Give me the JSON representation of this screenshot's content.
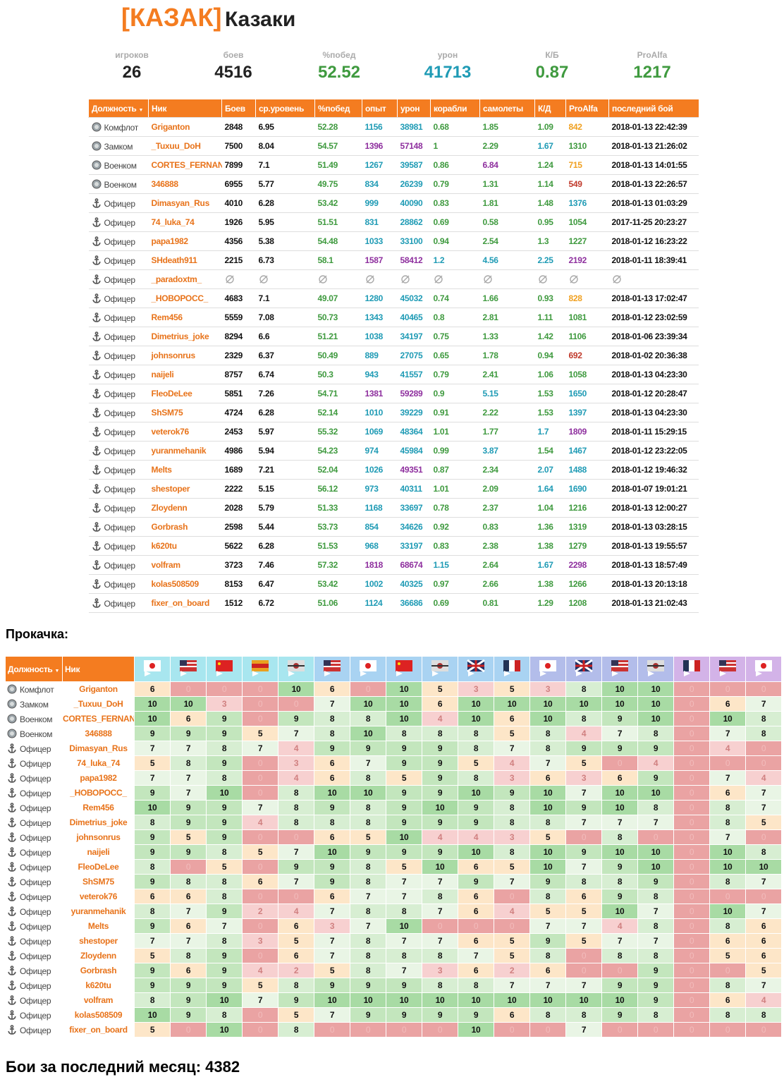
{
  "header": {
    "tag": "[КАЗАК]",
    "name": "Казаки"
  },
  "stats": [
    {
      "label": "игроков",
      "value": "26",
      "color": "#222222"
    },
    {
      "label": "боев",
      "value": "4516",
      "color": "#222222"
    },
    {
      "label": "%побед",
      "value": "52.52",
      "color": "#3f9a3f"
    },
    {
      "label": "урон",
      "value": "41713",
      "color": "#1f9bb5"
    },
    {
      "label": "К/Б",
      "value": "0.87",
      "color": "#3f9a3f"
    },
    {
      "label": "ProAlfa",
      "value": "1217",
      "color": "#3f9a3f"
    }
  ],
  "members": {
    "columns": [
      "Должность",
      "Ник",
      "Боев",
      "ср.уровень",
      "%побед",
      "опыт",
      "урон",
      "корабли",
      "самолеты",
      "К/Д",
      "ProAlfa",
      "последний бой"
    ],
    "rows": [
      [
        "Комфлот",
        "Griganton",
        "2848",
        "6.95",
        "52.28",
        "1156",
        "38981",
        "0.68",
        "1.85",
        "1.09",
        "842",
        "2018-01-13 22:42:39"
      ],
      [
        "Замком",
        "_Tuxuu_DoH",
        "7500",
        "8.04",
        "54.57",
        "1396",
        "57148",
        "1",
        "2.29",
        "1.67",
        "1310",
        "2018-01-13 21:26:02"
      ],
      [
        "Военком",
        "CORTES_FERNAN",
        "7899",
        "7.1",
        "51.49",
        "1267",
        "39587",
        "0.86",
        "6.84",
        "1.24",
        "715",
        "2018-01-13 14:01:55"
      ],
      [
        "Военком",
        "346888",
        "6955",
        "5.77",
        "49.75",
        "834",
        "26239",
        "0.79",
        "1.31",
        "1.14",
        "549",
        "2018-01-13 22:26:57"
      ],
      [
        "Офицер",
        "Dimasyan_Rus",
        "4010",
        "6.28",
        "53.42",
        "999",
        "40090",
        "0.83",
        "1.81",
        "1.48",
        "1376",
        "2018-01-13 01:03:29"
      ],
      [
        "Офицер",
        "74_luka_74",
        "1926",
        "5.95",
        "51.51",
        "831",
        "28862",
        "0.69",
        "0.58",
        "0.95",
        "1054",
        "2017-11-25 20:23:27"
      ],
      [
        "Офицер",
        "papa1982",
        "4356",
        "5.38",
        "54.48",
        "1033",
        "33100",
        "0.94",
        "2.54",
        "1.3",
        "1227",
        "2018-01-12 16:23:22"
      ],
      [
        "Офицер",
        "SHdeath911",
        "2215",
        "6.73",
        "58.1",
        "1587",
        "58412",
        "1.2",
        "4.56",
        "2.25",
        "2192",
        "2018-01-11 18:39:41"
      ],
      [
        "Офицер",
        "_paradoxtm_",
        null,
        null,
        null,
        null,
        null,
        null,
        null,
        null,
        null,
        null
      ],
      [
        "Офицер",
        "_НОВОРОСС_",
        "4683",
        "7.1",
        "49.07",
        "1280",
        "45032",
        "0.74",
        "1.66",
        "0.93",
        "828",
        "2018-01-13 17:02:47"
      ],
      [
        "Офицер",
        "Rem456",
        "5559",
        "7.08",
        "50.73",
        "1343",
        "40465",
        "0.8",
        "2.81",
        "1.11",
        "1081",
        "2018-01-12 23:02:59"
      ],
      [
        "Офицер",
        "Dimetrius_joke",
        "8294",
        "6.6",
        "51.21",
        "1038",
        "34197",
        "0.75",
        "1.33",
        "1.42",
        "1106",
        "2018-01-06 23:39:34"
      ],
      [
        "Офицер",
        "johnsonrus",
        "2329",
        "6.37",
        "50.49",
        "889",
        "27075",
        "0.65",
        "1.78",
        "0.94",
        "692",
        "2018-01-02 20:36:38"
      ],
      [
        "Офицер",
        "naijeli",
        "8757",
        "6.74",
        "50.3",
        "943",
        "41557",
        "0.79",
        "2.41",
        "1.06",
        "1058",
        "2018-01-13 04:23:30"
      ],
      [
        "Офицер",
        "FleoDeLee",
        "5851",
        "7.26",
        "54.71",
        "1381",
        "59289",
        "0.9",
        "5.15",
        "1.53",
        "1650",
        "2018-01-12 20:28:47"
      ],
      [
        "Офицер",
        "ShSM75",
        "4724",
        "6.28",
        "52.14",
        "1010",
        "39229",
        "0.91",
        "2.22",
        "1.53",
        "1397",
        "2018-01-13 04:23:30"
      ],
      [
        "Офицер",
        "veterok76",
        "2453",
        "5.97",
        "55.32",
        "1069",
        "48364",
        "1.01",
        "1.77",
        "1.7",
        "1809",
        "2018-01-11 15:29:15"
      ],
      [
        "Офицер",
        "yuranmehanik",
        "4986",
        "5.94",
        "54.23",
        "974",
        "45984",
        "0.99",
        "3.87",
        "1.54",
        "1467",
        "2018-01-12 23:22:05"
      ],
      [
        "Офицер",
        "Melts",
        "1689",
        "7.21",
        "52.04",
        "1026",
        "49351",
        "0.87",
        "2.34",
        "2.07",
        "1488",
        "2018-01-12 19:46:32"
      ],
      [
        "Офицер",
        "shestoper",
        "2222",
        "5.15",
        "56.12",
        "973",
        "40311",
        "1.01",
        "2.09",
        "1.64",
        "1690",
        "2018-01-07 19:01:21"
      ],
      [
        "Офицер",
        "Zloydenn",
        "2028",
        "5.79",
        "51.33",
        "1168",
        "33697",
        "0.78",
        "2.37",
        "1.04",
        "1216",
        "2018-01-13 12:00:27"
      ],
      [
        "Офицер",
        "Gorbrash",
        "2598",
        "5.44",
        "53.73",
        "854",
        "34626",
        "0.92",
        "0.83",
        "1.36",
        "1319",
        "2018-01-13 03:28:15"
      ],
      [
        "Офицер",
        "k620tu",
        "5622",
        "6.28",
        "51.53",
        "968",
        "33197",
        "0.83",
        "2.38",
        "1.38",
        "1279",
        "2018-01-13 19:55:57"
      ],
      [
        "Офицер",
        "volfram",
        "3723",
        "7.46",
        "57.32",
        "1818",
        "68674",
        "1.15",
        "2.64",
        "1.67",
        "2298",
        "2018-01-13 18:57:49"
      ],
      [
        "Офицер",
        "kolas508509",
        "8153",
        "6.47",
        "53.42",
        "1002",
        "40325",
        "0.97",
        "2.66",
        "1.38",
        "1266",
        "2018-01-13 20:13:18"
      ],
      [
        "Офицер",
        "fixer_on_board",
        "1512",
        "6.72",
        "51.06",
        "1124",
        "36686",
        "0.69",
        "0.81",
        "1.29",
        "1208",
        "2018-01-13 21:02:43"
      ]
    ]
  },
  "upgrades": {
    "title": "Прокачка:",
    "columns": [
      "Должность",
      "Ник"
    ],
    "rows": [
      [
        "Комфлот",
        "Griganton",
        6,
        0,
        0,
        0,
        10,
        6,
        0,
        10,
        5,
        3,
        5,
        3,
        8,
        10,
        10,
        0,
        0,
        0
      ],
      [
        "Замком",
        "_Tuxuu_DoH",
        10,
        10,
        3,
        0,
        0,
        7,
        10,
        10,
        6,
        10,
        10,
        10,
        10,
        10,
        10,
        0,
        6,
        7
      ],
      [
        "Военком",
        "CORTES_FERNAN",
        10,
        6,
        9,
        0,
        9,
        8,
        8,
        10,
        4,
        10,
        6,
        10,
        8,
        9,
        10,
        0,
        10,
        8
      ],
      [
        "Военком",
        "346888",
        9,
        9,
        9,
        5,
        7,
        8,
        10,
        8,
        8,
        8,
        5,
        8,
        4,
        7,
        8,
        0,
        7,
        8
      ],
      [
        "Офицер",
        "Dimasyan_Rus",
        7,
        7,
        8,
        7,
        4,
        9,
        9,
        9,
        9,
        8,
        7,
        8,
        9,
        9,
        9,
        0,
        4,
        0
      ],
      [
        "Офицер",
        "74_luka_74",
        5,
        8,
        9,
        0,
        3,
        6,
        7,
        9,
        9,
        5,
        4,
        7,
        5,
        0,
        4,
        0,
        0,
        0
      ],
      [
        "Офицер",
        "papa1982",
        7,
        7,
        8,
        0,
        4,
        6,
        8,
        5,
        9,
        8,
        3,
        6,
        3,
        6,
        9,
        0,
        7,
        4
      ],
      [
        "Офицер",
        "_НОВОРОСС_",
        9,
        7,
        10,
        0,
        8,
        10,
        10,
        9,
        9,
        10,
        9,
        10,
        7,
        10,
        10,
        0,
        6,
        7
      ],
      [
        "Офицер",
        "Rem456",
        10,
        9,
        9,
        7,
        8,
        9,
        8,
        9,
        10,
        9,
        8,
        10,
        9,
        10,
        8,
        0,
        8,
        7
      ],
      [
        "Офицер",
        "Dimetrius_joke",
        8,
        9,
        9,
        4,
        8,
        8,
        8,
        9,
        9,
        9,
        8,
        8,
        7,
        7,
        7,
        0,
        8,
        5
      ],
      [
        "Офицер",
        "johnsonrus",
        9,
        5,
        9,
        0,
        0,
        6,
        5,
        10,
        4,
        4,
        3,
        5,
        0,
        8,
        0,
        0,
        7,
        0
      ],
      [
        "Офицер",
        "naijeli",
        9,
        9,
        8,
        5,
        7,
        10,
        9,
        9,
        9,
        10,
        8,
        10,
        9,
        10,
        10,
        0,
        10,
        8
      ],
      [
        "Офицер",
        "FleoDeLee",
        8,
        0,
        5,
        0,
        9,
        9,
        8,
        5,
        10,
        6,
        5,
        10,
        7,
        9,
        10,
        0,
        10,
        10
      ],
      [
        "Офицер",
        "ShSM75",
        9,
        8,
        8,
        6,
        7,
        9,
        8,
        7,
        7,
        9,
        7,
        9,
        8,
        8,
        9,
        0,
        8,
        7
      ],
      [
        "Офицер",
        "veterok76",
        6,
        6,
        8,
        0,
        0,
        6,
        7,
        7,
        8,
        6,
        0,
        8,
        6,
        9,
        8,
        0,
        0,
        0
      ],
      [
        "Офицер",
        "yuranmehanik",
        8,
        7,
        9,
        2,
        4,
        7,
        8,
        8,
        7,
        6,
        4,
        5,
        5,
        10,
        7,
        0,
        10,
        7
      ],
      [
        "Офицер",
        "Melts",
        9,
        6,
        7,
        0,
        6,
        3,
        7,
        10,
        0,
        0,
        0,
        7,
        7,
        4,
        8,
        0,
        8,
        6
      ],
      [
        "Офицер",
        "shestoper",
        7,
        7,
        8,
        3,
        5,
        7,
        8,
        7,
        7,
        6,
        5,
        9,
        5,
        7,
        7,
        0,
        6,
        6
      ],
      [
        "Офицер",
        "Zloydenn",
        5,
        8,
        9,
        0,
        6,
        7,
        8,
        8,
        8,
        7,
        5,
        8,
        0,
        8,
        8,
        0,
        5,
        6
      ],
      [
        "Офицер",
        "Gorbrash",
        9,
        6,
        9,
        4,
        2,
        5,
        8,
        7,
        3,
        6,
        2,
        6,
        0,
        0,
        9,
        0,
        0,
        5
      ],
      [
        "Офицер",
        "k620tu",
        9,
        9,
        9,
        5,
        8,
        9,
        9,
        9,
        8,
        8,
        7,
        7,
        7,
        9,
        9,
        0,
        8,
        7
      ],
      [
        "Офицер",
        "volfram",
        8,
        9,
        10,
        7,
        9,
        10,
        10,
        10,
        10,
        10,
        10,
        10,
        10,
        10,
        9,
        0,
        6,
        4
      ],
      [
        "Офицер",
        "kolas508509",
        10,
        9,
        8,
        0,
        5,
        7,
        9,
        9,
        9,
        9,
        6,
        8,
        8,
        9,
        8,
        0,
        8,
        8
      ],
      [
        "Офицер",
        "fixer_on_board",
        5,
        0,
        10,
        0,
        8,
        0,
        0,
        0,
        0,
        10,
        0,
        0,
        7,
        0,
        0,
        0,
        0,
        0
      ]
    ]
  },
  "footer": {
    "label": "Бои за последний месяц:",
    "value": "4382"
  }
}
